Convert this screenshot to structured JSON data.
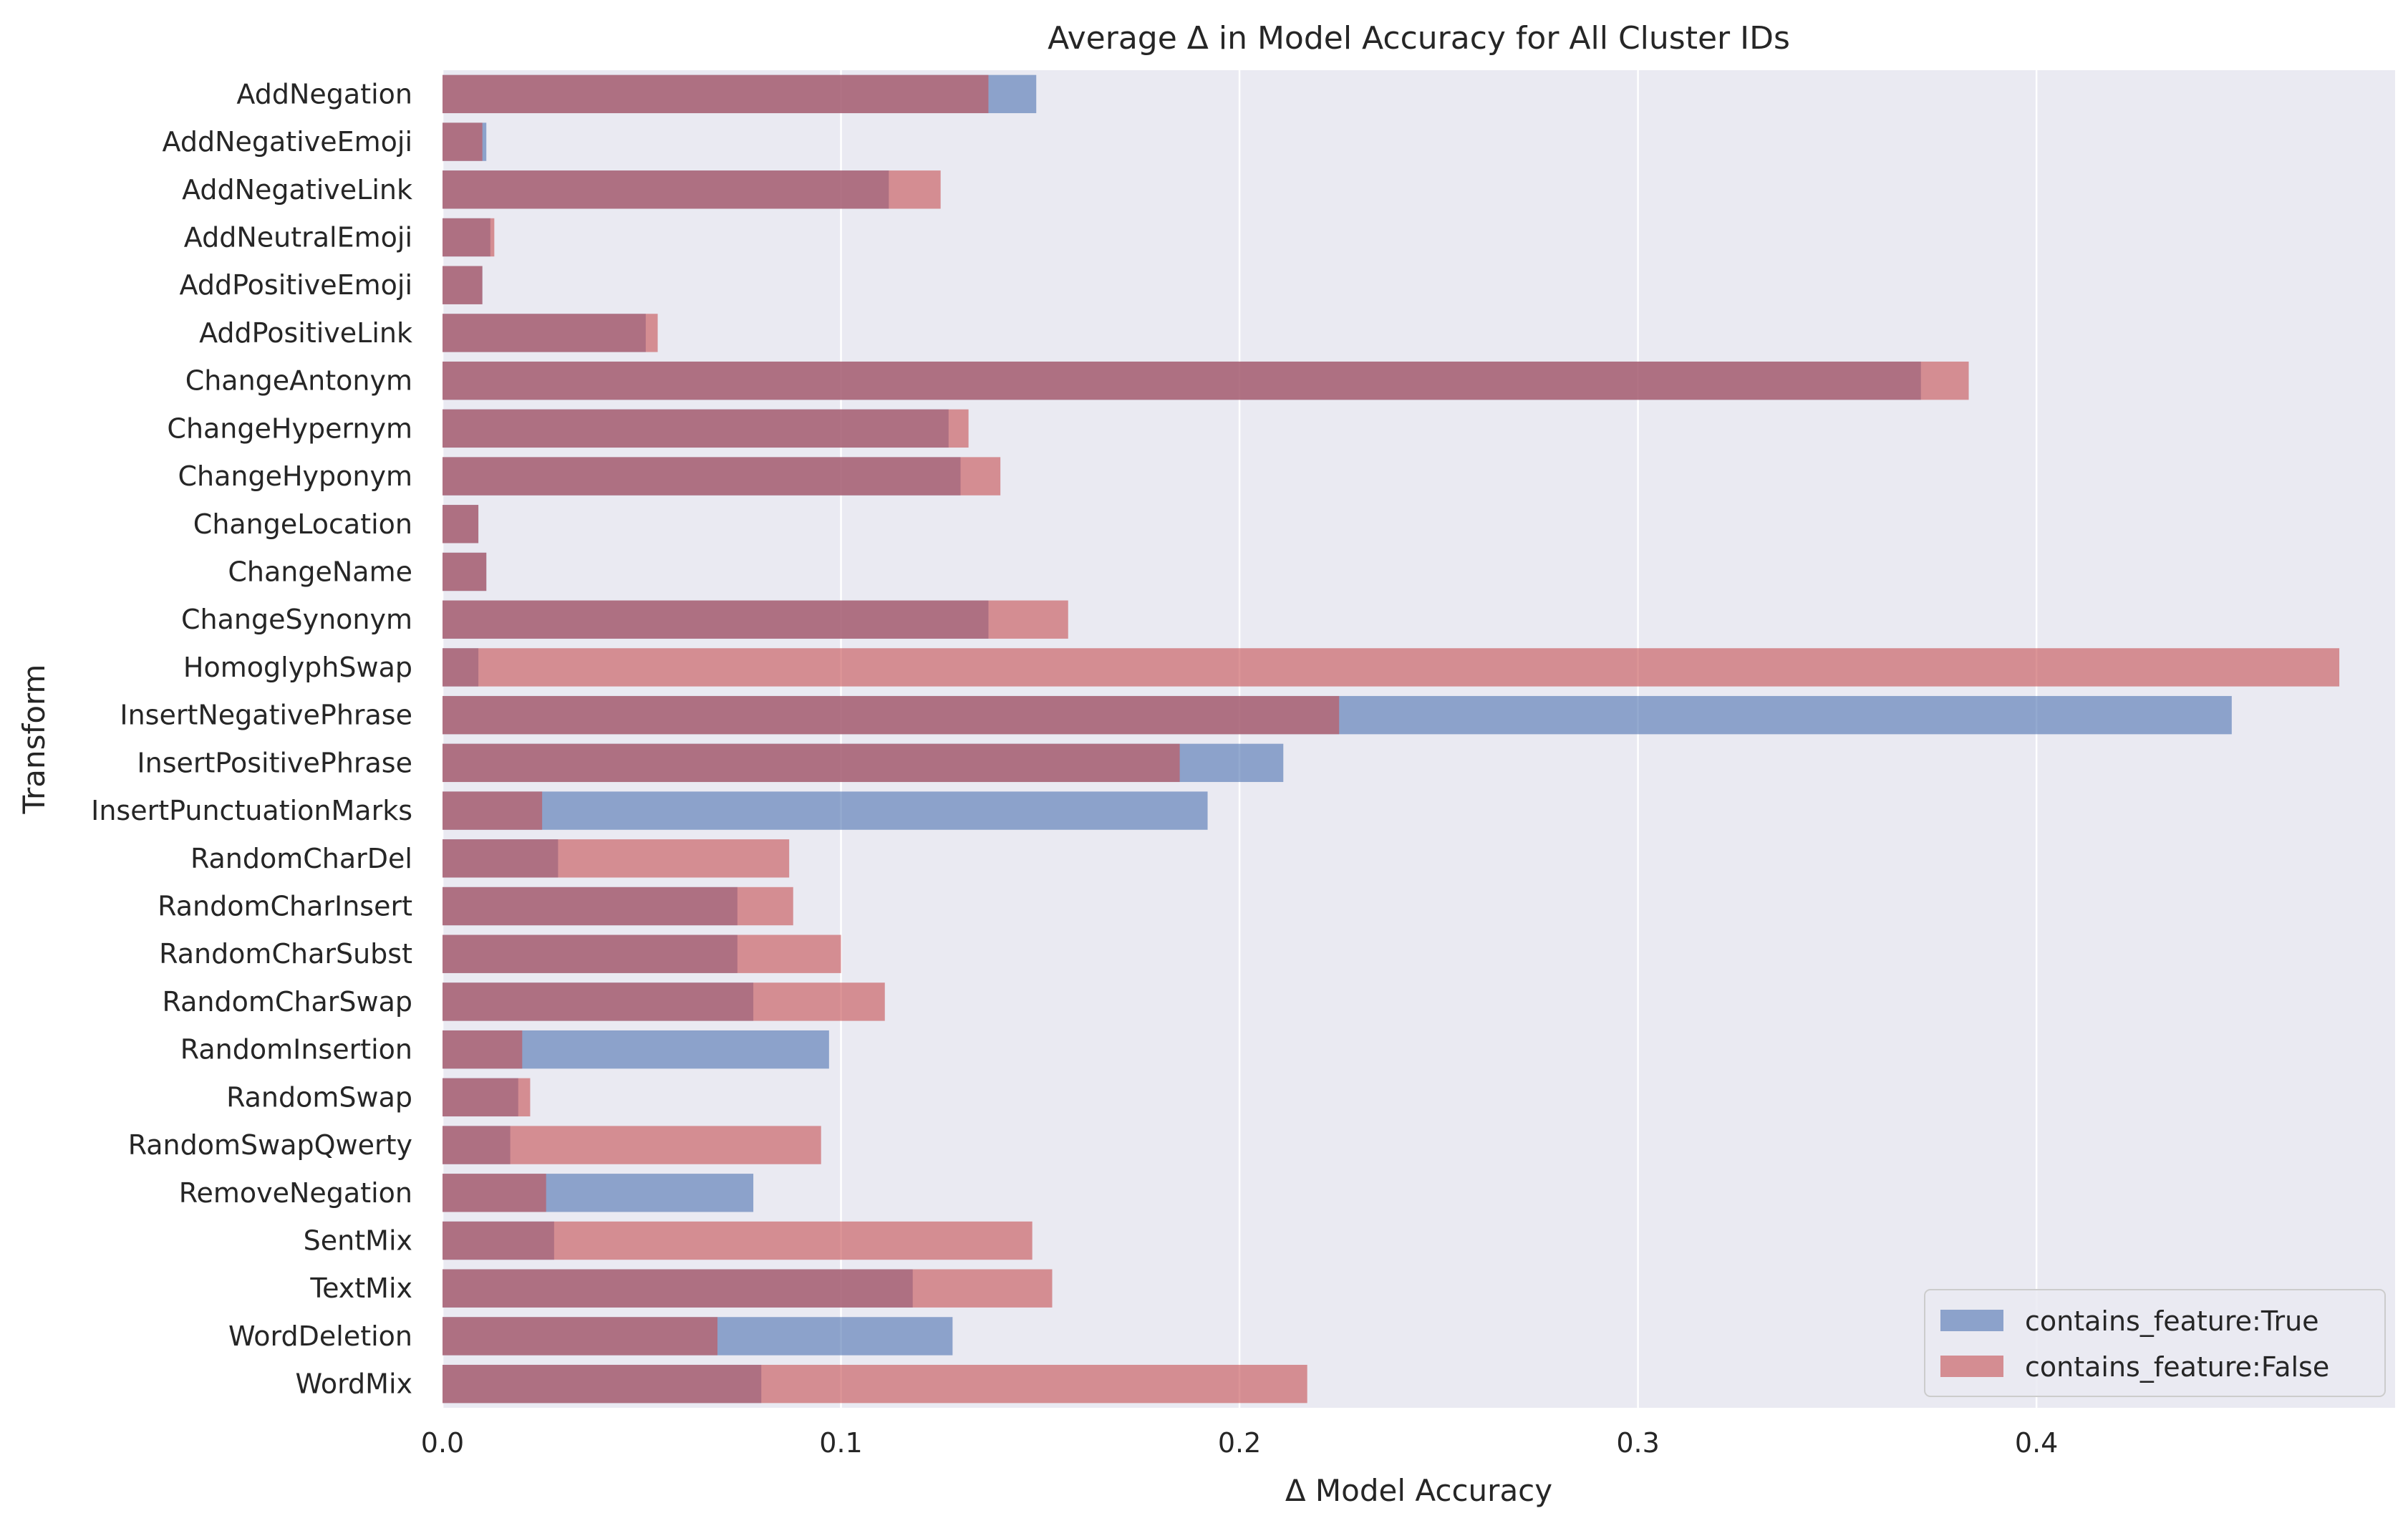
{
  "chart_data": {
    "type": "bar",
    "orientation": "horizontal",
    "title": "Average Δ in Model Accuracy for All Cluster IDs",
    "xlabel": "Δ Model Accuracy",
    "ylabel": "Transform",
    "xlim": [
      0,
      0.49
    ],
    "xticks": [
      0.0,
      0.1,
      0.2,
      0.3,
      0.4
    ],
    "xtick_labels": [
      "0.0",
      "0.1",
      "0.2",
      "0.3",
      "0.4"
    ],
    "grid": true,
    "legend_position": "lower-right",
    "categories": [
      "AddNegation",
      "AddNegativeEmoji",
      "AddNegativeLink",
      "AddNeutralEmoji",
      "AddPositiveEmoji",
      "AddPositiveLink",
      "ChangeAntonym",
      "ChangeHypernym",
      "ChangeHyponym",
      "ChangeLocation",
      "ChangeName",
      "ChangeSynonym",
      "HomoglyphSwap",
      "InsertNegativePhrase",
      "InsertPositivePhrase",
      "InsertPunctuationMarks",
      "RandomCharDel",
      "RandomCharInsert",
      "RandomCharSubst",
      "RandomCharSwap",
      "RandomInsertion",
      "RandomSwap",
      "RandomSwapQwerty",
      "RemoveNegation",
      "SentMix",
      "TextMix",
      "WordDeletion",
      "WordMix"
    ],
    "series": [
      {
        "name": "contains_feature:True",
        "color": "#4c72b0",
        "values": [
          0.149,
          0.011,
          0.112,
          0.012,
          0.01,
          0.051,
          0.371,
          0.127,
          0.13,
          0.009,
          0.011,
          0.137,
          0.009,
          0.449,
          0.211,
          0.192,
          0.029,
          0.074,
          0.074,
          0.078,
          0.097,
          0.019,
          0.017,
          0.078,
          0.028,
          0.118,
          0.128,
          0.08
        ]
      },
      {
        "name": "contains_feature:False",
        "color": "#c44e52",
        "values": [
          0.137,
          0.01,
          0.125,
          0.013,
          0.01,
          0.054,
          0.383,
          0.132,
          0.14,
          0.009,
          0.011,
          0.157,
          0.476,
          0.225,
          0.185,
          0.025,
          0.087,
          0.088,
          0.1,
          0.111,
          0.02,
          0.022,
          0.095,
          0.026,
          0.148,
          0.153,
          0.069,
          0.217
        ]
      }
    ]
  }
}
